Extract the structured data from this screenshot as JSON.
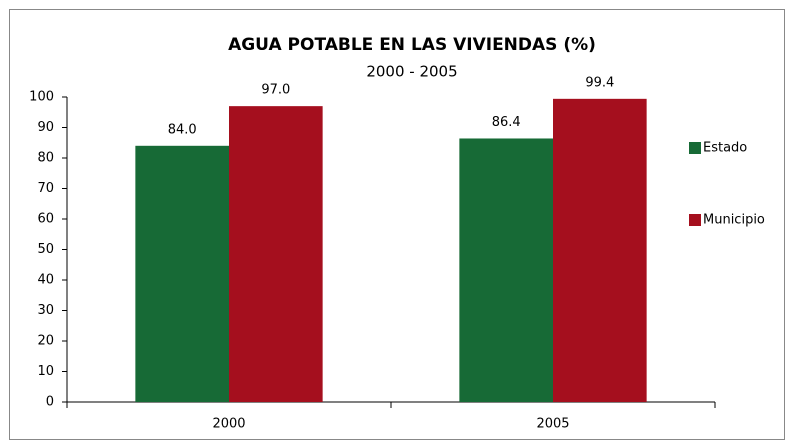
{
  "chart_data": {
    "type": "bar",
    "title": "AGUA POTABLE EN LAS VIVIENDAS (%)",
    "subtitle": "2000 - 2005",
    "categories": [
      "2000",
      "2005"
    ],
    "series": [
      {
        "name": "Estado",
        "color": "#176a36",
        "values": [
          84.0,
          86.4
        ],
        "value_labels": [
          "84.0",
          "86.4"
        ]
      },
      {
        "name": "Municipio",
        "color": "#a50f1e",
        "values": [
          97.0,
          99.4
        ],
        "value_labels": [
          "97.0",
          "99.4"
        ]
      }
    ],
    "ylim": [
      0,
      100
    ],
    "yticks": [
      0,
      10,
      20,
      30,
      40,
      50,
      60,
      70,
      80,
      90,
      100
    ],
    "grid": false,
    "legend": "right"
  }
}
